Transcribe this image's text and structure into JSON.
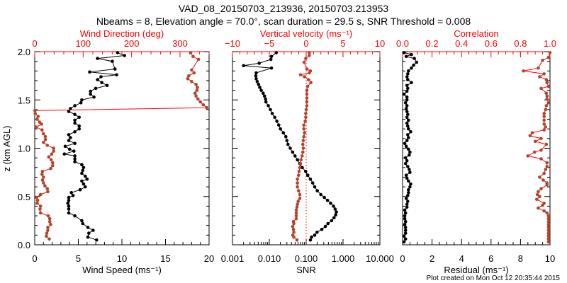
{
  "title": "VAD_08_20150703_213936, 20150703.213953",
  "subtitle": "Nbeams = 8, Elevation angle = 70.0°, scan duration = 29.5 s, SNR Threshold = 0.008",
  "footer": "Plot created on Mon Oct 12 20:35:44 2015",
  "colors": {
    "primary_series": "#000000",
    "secondary_series_marker": "#b0452c",
    "secondary_series_line": "#ff0000",
    "secondary_axis": "#ff0000"
  },
  "chart_data": [
    {
      "type": "line",
      "ylabel": "z (km AGL)",
      "xlabel": "Wind Speed (ms⁻¹)",
      "x2label": "Wind Direction (deg)",
      "ylim": [
        0,
        2
      ],
      "xlim": [
        0,
        20
      ],
      "x2lim": [
        0,
        360
      ],
      "yticks": {
        "values": [
          0,
          0.5,
          1.0,
          1.5,
          2.0
        ],
        "labels": [
          "0.0",
          "0.5",
          "1.0",
          "1.5",
          "2.0"
        ]
      },
      "xticks": {
        "values": [
          0,
          5,
          10,
          15,
          20
        ],
        "labels": [
          "0",
          "5",
          "10",
          "15",
          "20"
        ]
      },
      "x2ticks": {
        "values": [
          0,
          100,
          200,
          300
        ],
        "labels": [
          "0",
          "100",
          "200",
          "300"
        ]
      },
      "series": [
        {
          "name": "Wind Speed",
          "axis": "bottom",
          "z": [
            0.05,
            0.08,
            0.12,
            0.15,
            0.18,
            0.22,
            0.25,
            0.3,
            0.33,
            0.37,
            0.4,
            0.43,
            0.46,
            0.49,
            0.51,
            0.54,
            0.57,
            0.6,
            0.63,
            0.66,
            0.68,
            0.71,
            0.74,
            0.77,
            0.8,
            0.83,
            0.86,
            0.89,
            0.92,
            0.94,
            0.97,
            0.99,
            1.02,
            1.05,
            1.08,
            1.11,
            1.14,
            1.17,
            1.2,
            1.23,
            1.26,
            1.29,
            1.32,
            1.35,
            1.38,
            1.41,
            1.44,
            1.47,
            1.5,
            1.53,
            1.56,
            1.59,
            1.62,
            1.65,
            1.68,
            1.71,
            1.74,
            1.76,
            1.79,
            1.82,
            1.9,
            1.93,
            1.96,
            1.99
          ],
          "values": [
            7.1,
            6.1,
            6.2,
            6.7,
            6.1,
            5.5,
            5.4,
            4.6,
            3.9,
            3.9,
            3.9,
            3.8,
            3.9,
            3.9,
            4.4,
            4.2,
            5.2,
            5.8,
            5.6,
            5.4,
            6.0,
            5.8,
            5.4,
            5.5,
            5.6,
            5.4,
            4.6,
            4.6,
            4.6,
            3.4,
            4.5,
            4.0,
            3.5,
            4.6,
            3.9,
            4.1,
            3.9,
            4.6,
            5.1,
            5.1,
            4.6,
            4.6,
            5.1,
            4.6,
            3.9,
            4.1,
            4.6,
            5.3,
            5.4,
            6.8,
            6.4,
            6.4,
            7.0,
            8.3,
            7.7,
            7.2,
            7.6,
            9.4,
            6.3,
            9.2,
            8.9,
            7.2,
            10.3,
            9.5
          ]
        },
        {
          "name": "Wind Direction",
          "axis": "top",
          "z": [
            0.06,
            0.09,
            0.12,
            0.15,
            0.18,
            0.21,
            0.24,
            0.27,
            0.3,
            0.33,
            0.37,
            0.4,
            0.43,
            0.46,
            0.49,
            0.52,
            0.55,
            0.58,
            0.61,
            0.64,
            0.67,
            0.7,
            0.73,
            0.76,
            0.79,
            0.82,
            0.85,
            0.88,
            0.91,
            0.94,
            0.97,
            1.0,
            1.03,
            1.06,
            1.09,
            1.12,
            1.15,
            1.19,
            1.22,
            1.25,
            1.27,
            1.3,
            1.33,
            1.36,
            1.39,
            1.42,
            1.45,
            1.48,
            1.51,
            1.54,
            1.57,
            1.6,
            1.63,
            1.66,
            1.69,
            1.72,
            1.75,
            1.78,
            1.81,
            1.92,
            1.95,
            1.99
          ],
          "values": [
            30,
            24,
            25,
            27,
            27,
            33,
            31,
            31,
            28,
            12,
            11,
            12,
            5,
            6,
            4,
            12,
            27,
            26,
            21,
            18,
            16,
            18,
            15,
            16,
            33,
            37,
            37,
            34,
            29,
            35,
            39,
            39,
            26,
            18,
            22,
            22,
            18,
            15,
            3,
            14,
            10,
            5,
            7,
            1,
            0.5,
            355,
            348,
            342,
            337,
            333,
            331,
            335,
            336,
            333,
            324,
            316,
            318,
            329,
            324,
            338,
            327,
            322
          ]
        }
      ]
    },
    {
      "type": "line",
      "xlabel": "SNR",
      "x2label": "Vertical velocity (ms⁻¹)",
      "ylim": [
        0,
        2
      ],
      "xlim": [
        0.001,
        10
      ],
      "xscale": "log",
      "x2lim": [
        -10,
        10
      ],
      "xticks": {
        "values": [
          0.001,
          0.01,
          0.1,
          1,
          10
        ],
        "labels": [
          "0.001",
          "0.010",
          "0.100",
          "1.000",
          "10.000"
        ]
      },
      "x2ticks": {
        "values": [
          -10,
          -5,
          0,
          5,
          10
        ],
        "labels": [
          "−10",
          "−5",
          "0",
          "5",
          "10"
        ]
      },
      "reference_line": {
        "axis": "top",
        "value": 0
      },
      "series": [
        {
          "name": "SNR",
          "axis": "bottom",
          "z": [
            0.05,
            0.08,
            0.1,
            0.13,
            0.16,
            0.19,
            0.22,
            0.25,
            0.28,
            0.31,
            0.34,
            0.37,
            0.4,
            0.43,
            0.46,
            0.49,
            0.52,
            0.56,
            0.6,
            0.64,
            0.68,
            0.72,
            0.76,
            0.8,
            0.84,
            0.88,
            0.92,
            0.96,
            1.0,
            1.04,
            1.08,
            1.12,
            1.16,
            1.2,
            1.24,
            1.28,
            1.32,
            1.36,
            1.4,
            1.44,
            1.48,
            1.51,
            1.54,
            1.57,
            1.6,
            1.63,
            1.66,
            1.69,
            1.72,
            1.75,
            1.78,
            1.83,
            1.855,
            1.88,
            1.92,
            1.95,
            1.99
          ],
          "values": [
            0.13,
            0.14,
            0.17,
            0.197,
            0.265,
            0.33,
            0.39,
            0.49,
            0.57,
            0.63,
            0.66,
            0.61,
            0.55,
            0.46,
            0.38,
            0.31,
            0.25,
            0.2,
            0.17,
            0.15,
            0.13,
            0.11,
            0.097,
            0.078,
            0.067,
            0.058,
            0.05,
            0.043,
            0.037,
            0.032,
            0.03,
            0.028,
            0.024,
            0.02,
            0.018,
            0.016,
            0.014,
            0.012,
            0.0107,
            0.0094,
            0.0081,
            0.0079,
            0.0074,
            0.0068,
            0.006,
            0.0055,
            0.0051,
            0.0047,
            0.0044,
            0.0043,
            0.0044,
            0.0114,
            0.002,
            0.0053,
            0.011,
            0.0114,
            0.0154
          ]
        },
        {
          "name": "Vertical velocity",
          "axis": "top",
          "z": [
            0.05,
            0.08,
            0.1,
            0.13,
            0.16,
            0.19,
            0.22,
            0.24,
            0.27,
            0.3,
            0.33,
            0.36,
            0.39,
            0.42,
            0.45,
            0.48,
            0.52,
            0.56,
            0.6,
            0.64,
            0.68,
            0.72,
            0.76,
            0.8,
            0.84,
            0.88,
            0.92,
            0.96,
            1.0,
            1.04,
            1.08,
            1.12,
            1.16,
            1.2,
            1.24,
            1.28,
            1.32,
            1.36,
            1.4,
            1.44,
            1.48,
            1.52,
            1.56,
            1.6,
            1.64,
            1.68,
            1.71,
            1.74,
            1.76,
            1.78,
            1.8,
            1.82,
            1.89,
            1.93,
            1.96,
            1.99
          ],
          "values": [
            -1.25,
            -1.67,
            -1.83,
            -1.67,
            -1.73,
            -1.83,
            -1.67,
            -1.73,
            -1.35,
            -1.35,
            -1.35,
            -1.35,
            -1.25,
            -1.19,
            -1.09,
            -0.87,
            -0.87,
            -1.03,
            -1.19,
            -1.19,
            -1.19,
            -1.03,
            -0.96,
            -0.87,
            -0.77,
            -0.71,
            -0.55,
            -0.45,
            -0.39,
            -0.45,
            -0.39,
            -0.32,
            -0.22,
            -0.32,
            -0.32,
            -0.13,
            -0.06,
            -0.06,
            0,
            0.1,
            0.1,
            0.1,
            0.1,
            0.1,
            0.19,
            0.64,
            0.32,
            -0.22,
            -0.77,
            0.42,
            0.58,
            0.1,
            -0.29,
            -0.06,
            0.42,
            0.42
          ]
        }
      ]
    },
    {
      "type": "line",
      "xlabel": "Residual (ms⁻¹)",
      "x2label": "Correlation",
      "ylim": [
        0,
        2
      ],
      "xlim": [
        0,
        10
      ],
      "x2lim": [
        0,
        1
      ],
      "xticks": {
        "values": [
          0,
          2,
          4,
          6,
          8,
          10
        ],
        "labels": [
          "0",
          "2",
          "4",
          "6",
          "8",
          "10"
        ]
      },
      "x2ticks": {
        "values": [
          0,
          0.2,
          0.4,
          0.6,
          0.8,
          1.0
        ],
        "labels": [
          "0.0",
          "0.2",
          "0.4",
          "0.6",
          "0.8",
          "1.0"
        ]
      },
      "series": [
        {
          "name": "Residual",
          "axis": "bottom",
          "z": [
            0.03,
            0.06,
            0.09,
            0.12,
            0.15,
            0.18,
            0.21,
            0.24,
            0.27,
            0.3,
            0.33,
            0.36,
            0.39,
            0.42,
            0.45,
            0.48,
            0.51,
            0.54,
            0.57,
            0.6,
            0.63,
            0.66,
            0.69,
            0.72,
            0.75,
            0.78,
            0.81,
            0.84,
            0.87,
            0.9,
            0.93,
            0.96,
            0.99,
            1.02,
            1.05,
            1.08,
            1.11,
            1.14,
            1.17,
            1.2,
            1.23,
            1.26,
            1.29,
            1.32,
            1.35,
            1.38,
            1.41,
            1.44,
            1.47,
            1.5,
            1.53,
            1.56,
            1.59,
            1.62,
            1.65,
            1.68,
            1.71,
            1.74,
            1.77,
            1.8,
            1.83,
            1.86,
            1.89,
            1.93,
            1.95,
            1.97,
            1.99
          ],
          "values": [
            0.1,
            0.2,
            0.1,
            0.2,
            0.2,
            0.2,
            0.15,
            0.2,
            0.15,
            0.15,
            0.2,
            0.15,
            0.3,
            0.3,
            0.35,
            0.25,
            0.35,
            0.4,
            0.4,
            0.5,
            0.55,
            0.4,
            0.3,
            0.25,
            0.5,
            0.45,
            0.35,
            0.2,
            0.3,
            0.2,
            0.45,
            0.5,
            0.4,
            0.25,
            0.15,
            0.3,
            0.4,
            0.35,
            0.55,
            0.4,
            0.35,
            0.3,
            0.4,
            0.3,
            0.35,
            0.3,
            0.25,
            0.3,
            0.2,
            0.3,
            0.3,
            0.1,
            0.3,
            0.35,
            0.3,
            0.6,
            0.35,
            0.3,
            0.35,
            0.4,
            0.6,
            0.75,
            0.95,
            0.8,
            0.25,
            0.6,
            0.1
          ]
        },
        {
          "name": "Correlation",
          "axis": "top",
          "z": [
            0.03,
            0.06,
            0.09,
            0.12,
            0.15,
            0.18,
            0.21,
            0.24,
            0.27,
            0.3,
            0.33,
            0.35,
            0.38,
            0.41,
            0.43,
            0.47,
            0.5,
            0.52,
            0.55,
            0.58,
            0.62,
            0.64,
            0.67,
            0.7,
            0.74,
            0.78,
            0.81,
            0.85,
            0.89,
            0.92,
            0.96,
            0.98,
            1.04,
            1.07,
            1.1,
            1.13,
            1.16,
            1.19,
            1.22,
            1.25,
            1.29,
            1.33,
            1.36,
            1.4,
            1.44,
            1.47,
            1.51,
            1.54,
            1.57,
            1.62,
            1.64,
            1.68,
            1.71,
            1.74,
            1.77,
            1.8,
            1.83,
            1.91,
            1.94,
            1.99
          ],
          "values": [
            0.99,
            0.99,
            0.99,
            0.99,
            0.99,
            0.99,
            0.99,
            0.99,
            0.99,
            0.99,
            0.98,
            0.96,
            0.92,
            0.95,
            0.96,
            0.91,
            0.93,
            0.915,
            0.92,
            0.94,
            0.98,
            0.98,
            0.955,
            0.93,
            0.96,
            0.97,
            0.98,
            0.98,
            0.94,
            0.85,
            0.895,
            0.94,
            0.975,
            0.9,
            0.94,
            0.865,
            0.88,
            0.96,
            0.97,
            0.96,
            0.96,
            0.96,
            0.96,
            0.97,
            0.975,
            0.99,
            0.98,
            0.98,
            0.975,
            0.94,
            0.99,
            0.98,
            0.975,
            0.93,
            0.96,
            0.82,
            0.92,
            0.95,
            0.99,
            1.0
          ]
        }
      ]
    }
  ]
}
